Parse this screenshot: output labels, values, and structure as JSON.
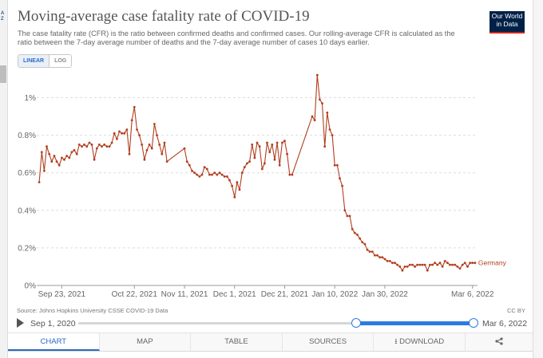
{
  "header": {
    "title": "Moving-average case fatality rate of COVID-19",
    "subtitle": "The case fatality rate (CFR) is the ratio between confirmed deaths and confirmed cases. Our rolling-average CFR is calculated as the ratio between the 7-day average number of deaths and the 7-day average number of cases 10 days earlier.",
    "logo_line1": "Our World",
    "logo_line2": "in Data"
  },
  "sidebar": {
    "az_label_top": "A",
    "az_label_bottom": "Z"
  },
  "scale_toggle": {
    "linear": "LINEAR",
    "log": "LOG",
    "selected": "LINEAR"
  },
  "colors": {
    "series": "#b23e1f",
    "grid": "#dddddd",
    "accent": "#2c7be0",
    "logo_bg": "#002147",
    "logo_stripe": "#ce261e"
  },
  "footer": {
    "source": "Source: Johns Hopkins University CSSE COVID-19 Data",
    "license": "CC BY"
  },
  "timeline": {
    "start": "Sep 1, 2020",
    "end": "Mar 6, 2022"
  },
  "tabs": {
    "chart": "CHART",
    "map": "MAP",
    "table": "TABLE",
    "sources": "SOURCES",
    "download": "DOWNLOAD"
  },
  "chart_data": {
    "type": "line",
    "title": "Moving-average case fatality rate of COVID-19",
    "xlabel": "",
    "ylabel": "",
    "x_range": [
      "2021-09-13",
      "2022-03-08"
    ],
    "ylim": [
      0,
      1.2
    ],
    "yticks": [
      0,
      0.2,
      0.4,
      0.6,
      0.8,
      1.0
    ],
    "ytick_labels": [
      "0%",
      "0.2%",
      "0.4%",
      "0.6%",
      "0.8%",
      "1%"
    ],
    "xticks": [
      "2021-09-23",
      "2021-10-22",
      "2021-11-11",
      "2021-12-01",
      "2021-12-21",
      "2022-01-10",
      "2022-01-30",
      "2022-03-06"
    ],
    "xtick_labels": [
      "Sep 23, 2021",
      "Oct 22, 2021",
      "Nov 11, 2021",
      "Dec 1, 2021",
      "Dec 21, 2021",
      "Jan 10, 2022",
      "Jan 30, 2022",
      "Mar 6, 2022"
    ],
    "grid": true,
    "legend": "end-of-line label",
    "series": [
      {
        "name": "Germany",
        "color": "#b23e1f",
        "points": [
          [
            "2021-09-14",
            0.55
          ],
          [
            "2021-09-15",
            0.71
          ],
          [
            "2021-09-16",
            0.61
          ],
          [
            "2021-09-17",
            0.74
          ],
          [
            "2021-09-18",
            0.7
          ],
          [
            "2021-09-19",
            0.66
          ],
          [
            "2021-09-20",
            0.69
          ],
          [
            "2021-09-21",
            0.66
          ],
          [
            "2021-09-22",
            0.64
          ],
          [
            "2021-09-23",
            0.68
          ],
          [
            "2021-09-24",
            0.67
          ],
          [
            "2021-09-25",
            0.69
          ],
          [
            "2021-09-26",
            0.68
          ],
          [
            "2021-09-27",
            0.71
          ],
          [
            "2021-09-28",
            0.72
          ],
          [
            "2021-09-29",
            0.7
          ],
          [
            "2021-09-30",
            0.75
          ],
          [
            "2021-10-01",
            0.74
          ],
          [
            "2021-10-02",
            0.75
          ],
          [
            "2021-10-03",
            0.74
          ],
          [
            "2021-10-04",
            0.76
          ],
          [
            "2021-10-05",
            0.75
          ],
          [
            "2021-10-06",
            0.67
          ],
          [
            "2021-10-07",
            0.73
          ],
          [
            "2021-10-08",
            0.75
          ],
          [
            "2021-10-09",
            0.74
          ],
          [
            "2021-10-10",
            0.75
          ],
          [
            "2021-10-11",
            0.74
          ],
          [
            "2021-10-12",
            0.74
          ],
          [
            "2021-10-13",
            0.76
          ],
          [
            "2021-10-14",
            0.81
          ],
          [
            "2021-10-15",
            0.78
          ],
          [
            "2021-10-16",
            0.82
          ],
          [
            "2021-10-17",
            0.81
          ],
          [
            "2021-10-18",
            0.81
          ],
          [
            "2021-10-19",
            0.83
          ],
          [
            "2021-10-20",
            0.7
          ],
          [
            "2021-10-21",
            0.88
          ],
          [
            "2021-10-22",
            0.95
          ],
          [
            "2021-10-23",
            0.83
          ],
          [
            "2021-10-24",
            0.8
          ],
          [
            "2021-10-25",
            0.75
          ],
          [
            "2021-10-26",
            0.67
          ],
          [
            "2021-10-27",
            0.72
          ],
          [
            "2021-10-28",
            0.75
          ],
          [
            "2021-10-29",
            0.73
          ],
          [
            "2021-10-30",
            0.86
          ],
          [
            "2021-10-31",
            0.8
          ],
          [
            "2021-11-01",
            0.75
          ],
          [
            "2021-11-02",
            0.7
          ],
          [
            "2021-11-03",
            0.76
          ],
          [
            "2021-11-04",
            0.66
          ],
          [
            "2021-11-11",
            0.73
          ],
          [
            "2021-11-12",
            0.66
          ],
          [
            "2021-11-13",
            0.64
          ],
          [
            "2021-11-14",
            0.61
          ],
          [
            "2021-11-15",
            0.6
          ],
          [
            "2021-11-16",
            0.59
          ],
          [
            "2021-11-17",
            0.58
          ],
          [
            "2021-11-18",
            0.59
          ],
          [
            "2021-11-19",
            0.63
          ],
          [
            "2021-11-20",
            0.62
          ],
          [
            "2021-11-21",
            0.59
          ],
          [
            "2021-11-22",
            0.59
          ],
          [
            "2021-11-23",
            0.6
          ],
          [
            "2021-11-24",
            0.59
          ],
          [
            "2021-11-25",
            0.6
          ],
          [
            "2021-11-26",
            0.59
          ],
          [
            "2021-11-27",
            0.58
          ],
          [
            "2021-11-28",
            0.58
          ],
          [
            "2021-11-29",
            0.56
          ],
          [
            "2021-11-30",
            0.53
          ],
          [
            "2021-12-01",
            0.47
          ],
          [
            "2021-12-02",
            0.55
          ],
          [
            "2021-12-03",
            0.51
          ],
          [
            "2021-12-04",
            0.6
          ],
          [
            "2021-12-05",
            0.63
          ],
          [
            "2021-12-06",
            0.65
          ],
          [
            "2021-12-07",
            0.66
          ],
          [
            "2021-12-08",
            0.75
          ],
          [
            "2021-12-09",
            0.68
          ],
          [
            "2021-12-10",
            0.76
          ],
          [
            "2021-12-11",
            0.74
          ],
          [
            "2021-12-12",
            0.62
          ],
          [
            "2021-12-13",
            0.65
          ],
          [
            "2021-12-14",
            0.76
          ],
          [
            "2021-12-15",
            0.71
          ],
          [
            "2021-12-16",
            0.75
          ],
          [
            "2021-12-17",
            0.67
          ],
          [
            "2021-12-18",
            0.76
          ],
          [
            "2021-12-19",
            0.64
          ],
          [
            "2021-12-20",
            0.76
          ],
          [
            "2021-12-21",
            0.77
          ],
          [
            "2021-12-22",
            0.7
          ],
          [
            "2021-12-23",
            0.59
          ],
          [
            "2021-12-24",
            0.59
          ],
          [
            "2022-01-01",
            0.9
          ],
          [
            "2022-01-02",
            0.88
          ],
          [
            "2022-01-03",
            1.12
          ],
          [
            "2022-01-04",
            0.99
          ],
          [
            "2022-01-05",
            0.97
          ],
          [
            "2022-01-06",
            0.74
          ],
          [
            "2022-01-07",
            0.92
          ],
          [
            "2022-01-08",
            0.83
          ],
          [
            "2022-01-09",
            0.8
          ],
          [
            "2022-01-10",
            0.64
          ],
          [
            "2022-01-11",
            0.64
          ],
          [
            "2022-01-12",
            0.57
          ],
          [
            "2022-01-13",
            0.53
          ],
          [
            "2022-01-14",
            0.4
          ],
          [
            "2022-01-15",
            0.37
          ],
          [
            "2022-01-16",
            0.37
          ],
          [
            "2022-01-17",
            0.3
          ],
          [
            "2022-01-18",
            0.28
          ],
          [
            "2022-01-19",
            0.27
          ],
          [
            "2022-01-20",
            0.25
          ],
          [
            "2022-01-21",
            0.23
          ],
          [
            "2022-01-22",
            0.22
          ],
          [
            "2022-01-23",
            0.19
          ],
          [
            "2022-01-24",
            0.18
          ],
          [
            "2022-01-25",
            0.18
          ],
          [
            "2022-01-26",
            0.16
          ],
          [
            "2022-01-27",
            0.16
          ],
          [
            "2022-01-28",
            0.15
          ],
          [
            "2022-01-29",
            0.15
          ],
          [
            "2022-01-30",
            0.14
          ],
          [
            "2022-01-31",
            0.13
          ],
          [
            "2022-02-01",
            0.13
          ],
          [
            "2022-02-02",
            0.12
          ],
          [
            "2022-02-03",
            0.12
          ],
          [
            "2022-02-04",
            0.11
          ],
          [
            "2022-02-05",
            0.1
          ],
          [
            "2022-02-06",
            0.08
          ],
          [
            "2022-02-07",
            0.1
          ],
          [
            "2022-02-08",
            0.1
          ],
          [
            "2022-02-09",
            0.11
          ],
          [
            "2022-02-10",
            0.11
          ],
          [
            "2022-02-11",
            0.1
          ],
          [
            "2022-02-12",
            0.11
          ],
          [
            "2022-02-13",
            0.11
          ],
          [
            "2022-02-14",
            0.11
          ],
          [
            "2022-02-15",
            0.11
          ],
          [
            "2022-02-16",
            0.08
          ],
          [
            "2022-02-17",
            0.11
          ],
          [
            "2022-02-18",
            0.11
          ],
          [
            "2022-02-19",
            0.12
          ],
          [
            "2022-02-20",
            0.11
          ],
          [
            "2022-02-21",
            0.12
          ],
          [
            "2022-02-22",
            0.1
          ],
          [
            "2022-02-23",
            0.13
          ],
          [
            "2022-02-24",
            0.12
          ],
          [
            "2022-02-25",
            0.11
          ],
          [
            "2022-02-26",
            0.11
          ],
          [
            "2022-02-27",
            0.11
          ],
          [
            "2022-02-28",
            0.1
          ],
          [
            "2022-03-01",
            0.09
          ],
          [
            "2022-03-02",
            0.11
          ],
          [
            "2022-03-03",
            0.12
          ],
          [
            "2022-03-04",
            0.1
          ],
          [
            "2022-03-05",
            0.12
          ],
          [
            "2022-03-06",
            0.12
          ],
          [
            "2022-03-07",
            0.12
          ]
        ]
      }
    ]
  }
}
